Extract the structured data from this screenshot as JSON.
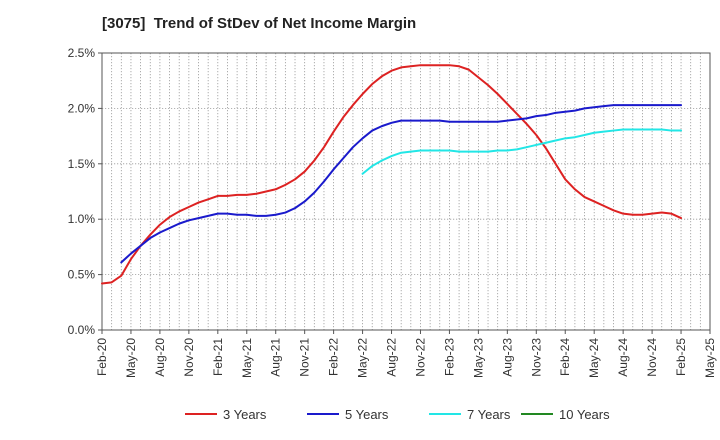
{
  "chart_data": {
    "type": "line",
    "title": "[3075]  Trend of StDev of Net Income Margin",
    "xlabel": "",
    "ylabel": "",
    "x_ticks": [
      "Feb-20",
      "May-20",
      "Aug-20",
      "Nov-20",
      "Feb-21",
      "May-21",
      "Aug-21",
      "Nov-21",
      "Feb-22",
      "May-22",
      "Aug-22",
      "Nov-22",
      "Feb-23",
      "May-23",
      "Aug-23",
      "Nov-23",
      "Feb-24",
      "May-24",
      "Aug-24",
      "Nov-24",
      "Feb-25",
      "May-25"
    ],
    "y_ticks": [
      "0.0%",
      "0.5%",
      "1.0%",
      "1.5%",
      "2.0%",
      "2.5%"
    ],
    "ylim": [
      0,
      2.5
    ],
    "y_unit": "%",
    "grid": true,
    "legend_position": "bottom",
    "x_dates": [
      "2020-02",
      "2020-03",
      "2020-04",
      "2020-05",
      "2020-06",
      "2020-07",
      "2020-08",
      "2020-09",
      "2020-10",
      "2020-11",
      "2020-12",
      "2021-01",
      "2021-02",
      "2021-03",
      "2021-04",
      "2021-05",
      "2021-06",
      "2021-07",
      "2021-08",
      "2021-09",
      "2021-10",
      "2021-11",
      "2021-12",
      "2022-01",
      "2022-02",
      "2022-03",
      "2022-04",
      "2022-05",
      "2022-06",
      "2022-07",
      "2022-08",
      "2022-09",
      "2022-10",
      "2022-11",
      "2022-12",
      "2023-01",
      "2023-02",
      "2023-03",
      "2023-04",
      "2023-05",
      "2023-06",
      "2023-07",
      "2023-08",
      "2023-09",
      "2023-10",
      "2023-11",
      "2023-12",
      "2024-01",
      "2024-02",
      "2024-03",
      "2024-04",
      "2024-05",
      "2024-06",
      "2024-07",
      "2024-08",
      "2024-09",
      "2024-10",
      "2024-11",
      "2024-12",
      "2025-01",
      "2025-02"
    ],
    "series": [
      {
        "name": "3 Years",
        "color": "#dd2222",
        "values": [
          0.42,
          0.43,
          0.49,
          0.64,
          0.76,
          0.86,
          0.95,
          1.02,
          1.07,
          1.11,
          1.15,
          1.18,
          1.21,
          1.21,
          1.22,
          1.22,
          1.23,
          1.25,
          1.27,
          1.31,
          1.36,
          1.43,
          1.53,
          1.65,
          1.79,
          1.92,
          2.03,
          2.13,
          2.22,
          2.29,
          2.34,
          2.37,
          2.38,
          2.39,
          2.39,
          2.39,
          2.39,
          2.38,
          2.35,
          2.28,
          2.21,
          2.13,
          2.04,
          1.95,
          1.86,
          1.76,
          1.64,
          1.5,
          1.36,
          1.27,
          1.2,
          1.16,
          1.12,
          1.08,
          1.05,
          1.04,
          1.04,
          1.05,
          1.06,
          1.05,
          1.01
        ]
      },
      {
        "name": "5 Years",
        "color": "#1a1acc",
        "values": [
          null,
          null,
          0.61,
          0.69,
          0.76,
          0.83,
          0.88,
          0.92,
          0.96,
          0.99,
          1.01,
          1.03,
          1.05,
          1.05,
          1.04,
          1.04,
          1.03,
          1.03,
          1.04,
          1.06,
          1.1,
          1.16,
          1.24,
          1.34,
          1.45,
          1.55,
          1.65,
          1.73,
          1.8,
          1.84,
          1.87,
          1.89,
          1.89,
          1.89,
          1.89,
          1.89,
          1.88,
          1.88,
          1.88,
          1.88,
          1.88,
          1.88,
          1.89,
          1.9,
          1.91,
          1.93,
          1.94,
          1.96,
          1.97,
          1.98,
          2.0,
          2.01,
          2.02,
          2.03,
          2.03,
          2.03,
          2.03,
          2.03,
          2.03,
          2.03,
          2.03
        ]
      },
      {
        "name": "7 Years",
        "color": "#22e6e6",
        "values": [
          null,
          null,
          null,
          null,
          null,
          null,
          null,
          null,
          null,
          null,
          null,
          null,
          null,
          null,
          null,
          null,
          null,
          null,
          null,
          null,
          null,
          null,
          null,
          null,
          null,
          null,
          null,
          1.41,
          1.48,
          1.53,
          1.57,
          1.6,
          1.61,
          1.62,
          1.62,
          1.62,
          1.62,
          1.61,
          1.61,
          1.61,
          1.61,
          1.62,
          1.62,
          1.63,
          1.65,
          1.67,
          1.69,
          1.71,
          1.73,
          1.74,
          1.76,
          1.78,
          1.79,
          1.8,
          1.81,
          1.81,
          1.81,
          1.81,
          1.81,
          1.8,
          1.8
        ]
      },
      {
        "name": "10 Years",
        "color": "#228822",
        "values": []
      }
    ]
  }
}
